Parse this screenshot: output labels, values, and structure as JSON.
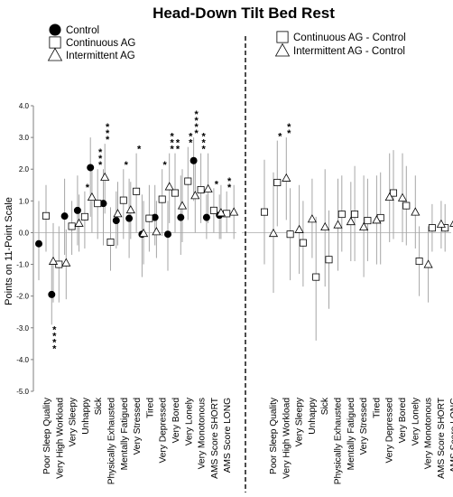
{
  "chart_data": {
    "type": "scatter",
    "title": "Head-Down Tilt Bed Rest",
    "ylabel": "Points on 11-Point Scale",
    "ylim": [
      -5.0,
      4.0
    ],
    "yticks": [
      "-5.0",
      "-4.0",
      "-3.0",
      "-2.0",
      "-1.0",
      "0.0",
      "1.0",
      "2.0",
      "3.0",
      "4.0"
    ],
    "grid": false,
    "zero_line": true,
    "legend_left": [
      {
        "marker": "circle-filled",
        "label": "Control"
      },
      {
        "marker": "square-open",
        "label": "Continuous AG"
      },
      {
        "marker": "triangle-open",
        "label": "Intermittent AG"
      }
    ],
    "legend_right": [
      {
        "marker": "square-open",
        "label": "Continuous AG - Control"
      },
      {
        "marker": "triangle-open",
        "label": "Intermittent AG - Control"
      }
    ],
    "categories": [
      "Poor Sleep Quality",
      "Very High Workload",
      "Very Sleepy",
      "Unhappy",
      "Sick",
      "Physically Exhausted",
      "Mentally Fatigued",
      "Very Stressed",
      "Tired",
      "Very Depressed",
      "Very Bored",
      "Very Lonely",
      "Very Monotonous",
      "AMS Score SHORT",
      "AMS Score LONG"
    ],
    "panels": [
      {
        "series": [
          {
            "name": "Control",
            "marker": "circle-filled",
            "values": [
              -0.35,
              -1.95,
              0.52,
              0.7,
              2.05,
              0.92,
              0.38,
              0.45,
              -0.05,
              0.48,
              -0.05,
              0.48,
              2.27,
              0.48,
              0.55
            ],
            "err_low": [
              -1.5,
              -2.9,
              -0.7,
              -0.4,
              0.5,
              -0.4,
              -0.5,
              -0.8,
              -1.4,
              -0.4,
              -1.2,
              -0.7,
              1.0,
              -0.2,
              -0.2
            ],
            "err_high": [
              1.0,
              -1.0,
              1.7,
              1.8,
              3.0,
              2.0,
              1.3,
              1.7,
              1.2,
              1.5,
              1.0,
              1.8,
              3.0,
              1.2,
              1.2
            ],
            "stars": [
              0,
              4,
              0,
              0,
              0,
              0,
              0,
              0,
              0,
              0,
              0,
              0,
              4,
              0,
              0
            ],
            "star_side": [
              "",
              "below",
              "",
              "",
              "",
              "",
              "",
              "",
              "",
              "",
              "",
              "",
              "above",
              "",
              ""
            ]
          },
          {
            "name": "Continuous AG",
            "marker": "square-open",
            "values": [
              0.53,
              -1.0,
              0.2,
              0.5,
              0.92,
              -0.3,
              1.02,
              1.3,
              0.45,
              1.05,
              1.25,
              1.62,
              1.35,
              0.7,
              0.6
            ],
            "err_low": [
              -0.6,
              -2.2,
              -0.7,
              -0.5,
              -0.2,
              -1.2,
              -0.2,
              0.0,
              -0.6,
              -0.1,
              0.0,
              0.4,
              0.3,
              0.0,
              0.0
            ],
            "err_high": [
              1.5,
              0.2,
              1.0,
              1.3,
              2.0,
              0.8,
              2.0,
              2.5,
              1.5,
              2.0,
              2.5,
              2.7,
              2.5,
              1.4,
              1.3
            ],
            "stars": [
              0,
              0,
              0,
              1,
              3,
              0,
              1,
              1,
              0,
              1,
              2,
              2,
              3,
              1,
              2
            ],
            "star_side": [
              "",
              "",
              "",
              "above",
              "above",
              "",
              "above",
              "above",
              "",
              "above",
              "above",
              "above",
              "above",
              "above",
              "above"
            ]
          },
          {
            "name": "Intermittent AG",
            "marker": "triangle-open",
            "values": [
              -0.9,
              -0.95,
              0.3,
              1.12,
              1.75,
              0.6,
              0.72,
              -0.02,
              0.03,
              1.45,
              0.85,
              1.17,
              1.38,
              0.63,
              0.65
            ],
            "err_low": [
              -2.2,
              -2.1,
              -0.6,
              0.0,
              0.6,
              -0.4,
              -0.2,
              -1.0,
              -0.8,
              0.3,
              -0.3,
              0.0,
              0.3,
              -0.2,
              -0.2
            ],
            "err_high": [
              0.3,
              0.1,
              1.2,
              2.0,
              2.8,
              1.6,
              1.6,
              1.0,
              1.0,
              2.5,
              2.0,
              2.3,
              2.5,
              1.5,
              1.5
            ],
            "stars": [
              0,
              0,
              0,
              0,
              3,
              0,
              0,
              0,
              0,
              3,
              0,
              0,
              0,
              0,
              0
            ],
            "star_side": [
              "",
              "",
              "",
              "",
              "above",
              "",
              "",
              "",
              "",
              "above",
              "",
              "",
              "",
              "",
              ""
            ]
          }
        ]
      },
      {
        "series": [
          {
            "name": "Continuous AG - Control",
            "marker": "square-open",
            "values": [
              0.65,
              1.58,
              -0.05,
              -0.32,
              -1.4,
              -0.85,
              0.58,
              0.58,
              0.38,
              0.47,
              1.25,
              0.85,
              -0.9,
              0.15,
              0.15
            ],
            "err_low": [
              -1.0,
              0.2,
              -1.5,
              -1.7,
              -3.4,
              -2.4,
              -0.6,
              -0.9,
              -0.9,
              -1.0,
              -0.2,
              -0.4,
              -2.0,
              -0.6,
              -0.6
            ],
            "err_high": [
              2.3,
              2.9,
              1.4,
              1.0,
              0.5,
              0.7,
              1.8,
              2.1,
              1.7,
              1.9,
              2.6,
              2.1,
              0.2,
              0.9,
              0.9
            ],
            "stars": [
              0,
              1,
              0,
              0,
              0,
              0,
              0,
              0,
              0,
              0,
              0,
              0,
              0,
              0,
              0
            ],
            "star_side": [
              "",
              "above",
              "",
              "",
              "",
              "",
              "",
              "",
              "",
              "",
              "",
              "",
              "",
              "",
              ""
            ]
          },
          {
            "name": "Intermittent AG - Control",
            "marker": "triangle-open",
            "values": [
              -0.02,
              1.72,
              0.1,
              0.43,
              0.18,
              0.25,
              0.35,
              0.18,
              0.4,
              1.12,
              1.1,
              0.65,
              -1.0,
              0.27,
              0.3
            ],
            "err_low": [
              -1.9,
              0.4,
              -1.3,
              -0.8,
              -1.7,
              -1.2,
              -0.9,
              -1.4,
              -1.0,
              -0.3,
              -0.3,
              -0.5,
              -2.2,
              -0.5,
              -0.4
            ],
            "err_high": [
              1.9,
              3.0,
              1.5,
              1.7,
              2.0,
              1.7,
              1.6,
              1.8,
              1.8,
              2.5,
              2.5,
              1.8,
              0.2,
              1.0,
              1.0
            ],
            "stars": [
              0,
              2,
              0,
              0,
              0,
              0,
              0,
              0,
              0,
              0,
              0,
              0,
              0,
              0,
              0
            ],
            "star_side": [
              "",
              "above",
              "",
              "",
              "",
              "",
              "",
              "",
              "",
              "",
              "",
              "",
              "",
              "",
              ""
            ]
          }
        ]
      }
    ]
  }
}
